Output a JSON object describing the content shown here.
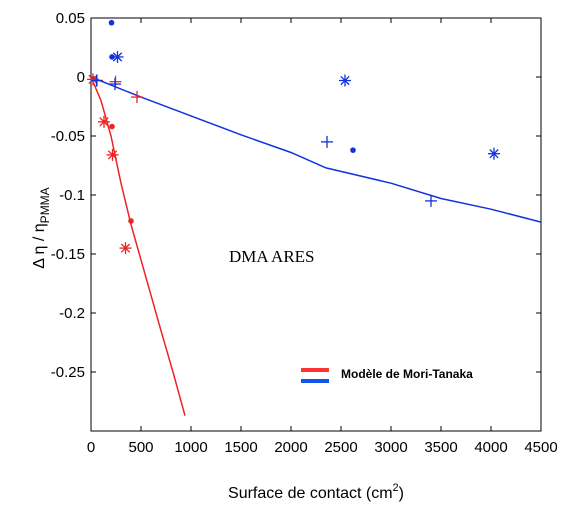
{
  "chart_data": {
    "type": "scatter",
    "title": "",
    "xlabel": "Surface de contact (cm",
    "xlabel_sup": "2",
    "xlabel_close": ")",
    "ylabel_prefix": "Δ η / η",
    "ylabel_sub": "PMMA",
    "xlim": [
      0,
      4500
    ],
    "ylim": [
      -0.3,
      0.05
    ],
    "x_ticks": [
      "0",
      "500",
      "1000",
      "1500",
      "2000",
      "2500",
      "3000",
      "3500",
      "4000",
      "4500"
    ],
    "x_tick_values": [
      0,
      500,
      1000,
      1500,
      2000,
      2500,
      3000,
      3500,
      4000,
      4500
    ],
    "y_ticks": [
      "0.05",
      "0",
      "-0.05",
      "-0.1",
      "-0.15",
      "-0.2",
      "-0.25"
    ],
    "y_tick_values": [
      0.05,
      0,
      -0.05,
      -0.1,
      -0.15,
      -0.2,
      -0.25
    ],
    "grid": false,
    "annotation": "DMA ARES",
    "legend": {
      "placement": "bottom-right",
      "text": "Modèle de Mori-Tanaka",
      "entries": [
        {
          "color": "#ff3333"
        },
        {
          "color": "#1155ee"
        }
      ]
    },
    "series": [
      {
        "kind": "line",
        "color": "#ee2222",
        "points": [
          [
            0,
            0
          ],
          [
            100,
            -0.02
          ],
          [
            200,
            -0.05
          ],
          [
            300,
            -0.09
          ],
          [
            400,
            -0.125
          ],
          [
            550,
            -0.17
          ],
          [
            700,
            -0.215
          ],
          [
            820,
            -0.25
          ],
          [
            940,
            -0.287
          ]
        ]
      },
      {
        "kind": "line",
        "color": "#1133dd",
        "points": [
          [
            0,
            0
          ],
          [
            500,
            -0.017
          ],
          [
            1000,
            -0.033
          ],
          [
            1500,
            -0.049
          ],
          [
            2000,
            -0.064
          ],
          [
            2350,
            -0.077
          ],
          [
            3000,
            -0.09
          ],
          [
            3500,
            -0.103
          ],
          [
            4000,
            -0.112
          ],
          [
            4500,
            -0.123
          ]
        ]
      },
      {
        "kind": "scatter",
        "color": "#ee2222",
        "markers": [
          {
            "x": 20,
            "y": -0.002,
            "m": "star"
          },
          {
            "x": 60,
            "y": -0.003,
            "m": "plus"
          },
          {
            "x": 130,
            "y": -0.038,
            "m": "star"
          },
          {
            "x": 210,
            "y": -0.042,
            "m": "dot"
          },
          {
            "x": 215,
            "y": -0.066,
            "m": "star"
          },
          {
            "x": 245,
            "y": -0.004,
            "m": "plus"
          },
          {
            "x": 345,
            "y": -0.145,
            "m": "star"
          },
          {
            "x": 400,
            "y": -0.122,
            "m": "dot"
          },
          {
            "x": 460,
            "y": -0.017,
            "m": "plus"
          }
        ]
      },
      {
        "kind": "scatter",
        "color": "#1133dd",
        "markers": [
          {
            "x": 205,
            "y": 0.046,
            "m": "dot"
          },
          {
            "x": 210,
            "y": 0.017,
            "m": "dot"
          },
          {
            "x": 265,
            "y": 0.017,
            "m": "star"
          },
          {
            "x": 55,
            "y": -0.003,
            "m": "plus"
          },
          {
            "x": 240,
            "y": -0.006,
            "m": "plus"
          },
          {
            "x": 2360,
            "y": -0.055,
            "m": "plus"
          },
          {
            "x": 2540,
            "y": -0.003,
            "m": "star"
          },
          {
            "x": 2620,
            "y": -0.062,
            "m": "dot"
          },
          {
            "x": 3400,
            "y": -0.105,
            "m": "plus"
          },
          {
            "x": 4030,
            "y": -0.065,
            "m": "star"
          }
        ]
      }
    ]
  }
}
